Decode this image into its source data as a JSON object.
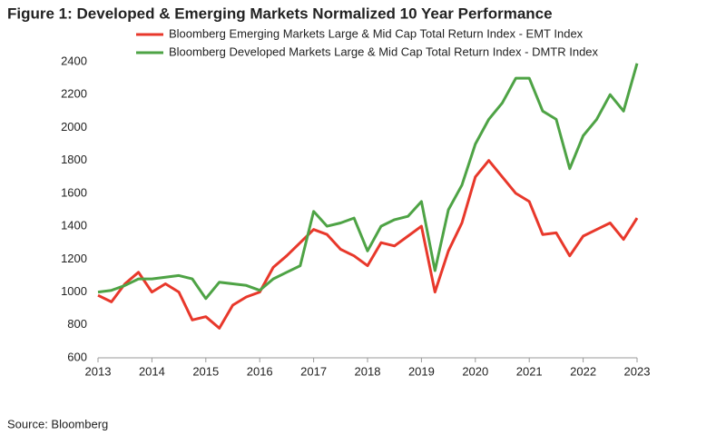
{
  "chart_data": {
    "type": "line",
    "title": "Figure 1: Developed & Emerging Markets Normalized 10 Year Performance",
    "source": "Source: Bloomberg",
    "x": [
      2013.0,
      2013.25,
      2013.5,
      2013.75,
      2014.0,
      2014.25,
      2014.5,
      2014.75,
      2015.0,
      2015.25,
      2015.5,
      2015.75,
      2016.0,
      2016.25,
      2016.5,
      2016.75,
      2017.0,
      2017.25,
      2017.5,
      2017.75,
      2018.0,
      2018.25,
      2018.5,
      2018.75,
      2019.0,
      2019.25,
      2019.5,
      2019.75,
      2020.0,
      2020.25,
      2020.5,
      2020.75,
      2021.0,
      2021.25,
      2021.5,
      2021.75,
      2022.0,
      2022.25,
      2022.5,
      2022.75,
      2023.0
    ],
    "series": [
      {
        "name": "Bloomberg Emerging Markets Large & Mid Cap Total Return Index - EMT Index",
        "color": "#e8382b",
        "values": [
          980,
          940,
          1050,
          1120,
          1000,
          1050,
          1000,
          830,
          850,
          780,
          920,
          970,
          1000,
          1150,
          1220,
          1300,
          1380,
          1350,
          1260,
          1220,
          1160,
          1300,
          1280,
          1340,
          1400,
          1000,
          1250,
          1420,
          1700,
          1800,
          1700,
          1600,
          1550,
          1350,
          1360,
          1220,
          1340,
          1380,
          1420,
          1320,
          1450
        ]
      },
      {
        "name": "Bloomberg Developed Markets Large & Mid Cap Total Return Index - DMTR Index",
        "color": "#4ea345",
        "values": [
          1000,
          1010,
          1040,
          1080,
          1080,
          1090,
          1100,
          1080,
          960,
          1060,
          1050,
          1040,
          1010,
          1080,
          1120,
          1160,
          1490,
          1400,
          1420,
          1450,
          1250,
          1400,
          1440,
          1460,
          1550,
          1130,
          1500,
          1650,
          1900,
          2050,
          2150,
          2300,
          2300,
          2100,
          2050,
          1750,
          1950,
          2050,
          2200,
          2100,
          2390
        ]
      }
    ],
    "xlim": [
      2013,
      2023
    ],
    "xticks": [
      2013,
      2014,
      2015,
      2016,
      2017,
      2018,
      2019,
      2020,
      2021,
      2022,
      2023
    ],
    "ylim": [
      600,
      2400
    ],
    "yticks": [
      600,
      800,
      1000,
      1200,
      1400,
      1600,
      1800,
      2000,
      2200,
      2400
    ]
  }
}
